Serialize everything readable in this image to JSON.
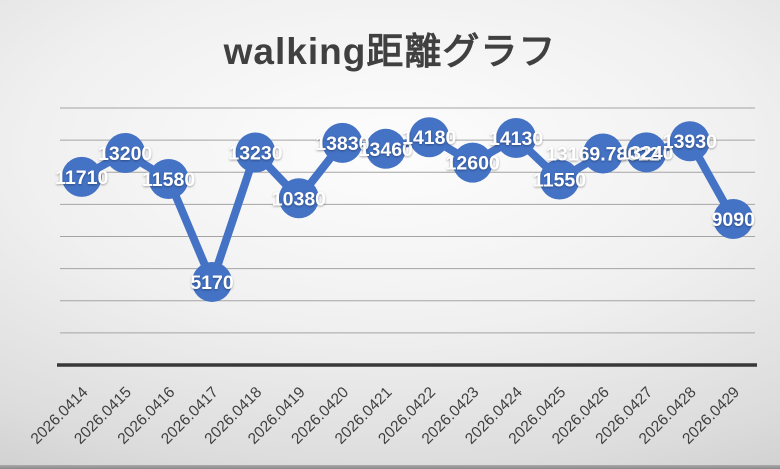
{
  "chart_data": {
    "type": "line",
    "title": "walking距離グラフ",
    "categories": [
      "2026.0414",
      "2026.0415",
      "2026.0416",
      "2026.0417",
      "2026.0418",
      "2026.0419",
      "2026.0420",
      "2026.0421",
      "2026.0422",
      "2026.0423",
      "2026.0424",
      "2026.0425",
      "2026.0426",
      "2026.0427",
      "2026.0428",
      "2026.0429"
    ],
    "values": [
      11710,
      13200,
      11580,
      5170,
      13230,
      10380,
      13830,
      13460,
      14180,
      12600,
      14130,
      11550,
      13169.78022,
      13240,
      13930,
      9090
    ],
    "data_labels": [
      "11710",
      "13200",
      "11580",
      "5170",
      "13230",
      "10380",
      "13830",
      "13460",
      "14180",
      "12600",
      "14130",
      "11550",
      "13169.78022",
      "13240",
      "13930",
      "9090"
    ],
    "xlabel": "",
    "ylabel": "",
    "ylim": [
      0,
      16000
    ],
    "gridline_interval": 2000,
    "grid": true,
    "legend": "none",
    "y_tick_labels_visible": false,
    "data_label_position": "center",
    "marker_style": "circle",
    "colors": {
      "line": "#4472C4",
      "marker": "#4472C4",
      "data_label": "#FFFFFF",
      "gridline": "#A4A4A4",
      "axis": "#383838",
      "tick_label": "#3F3F3F",
      "title": "#404040"
    }
  }
}
